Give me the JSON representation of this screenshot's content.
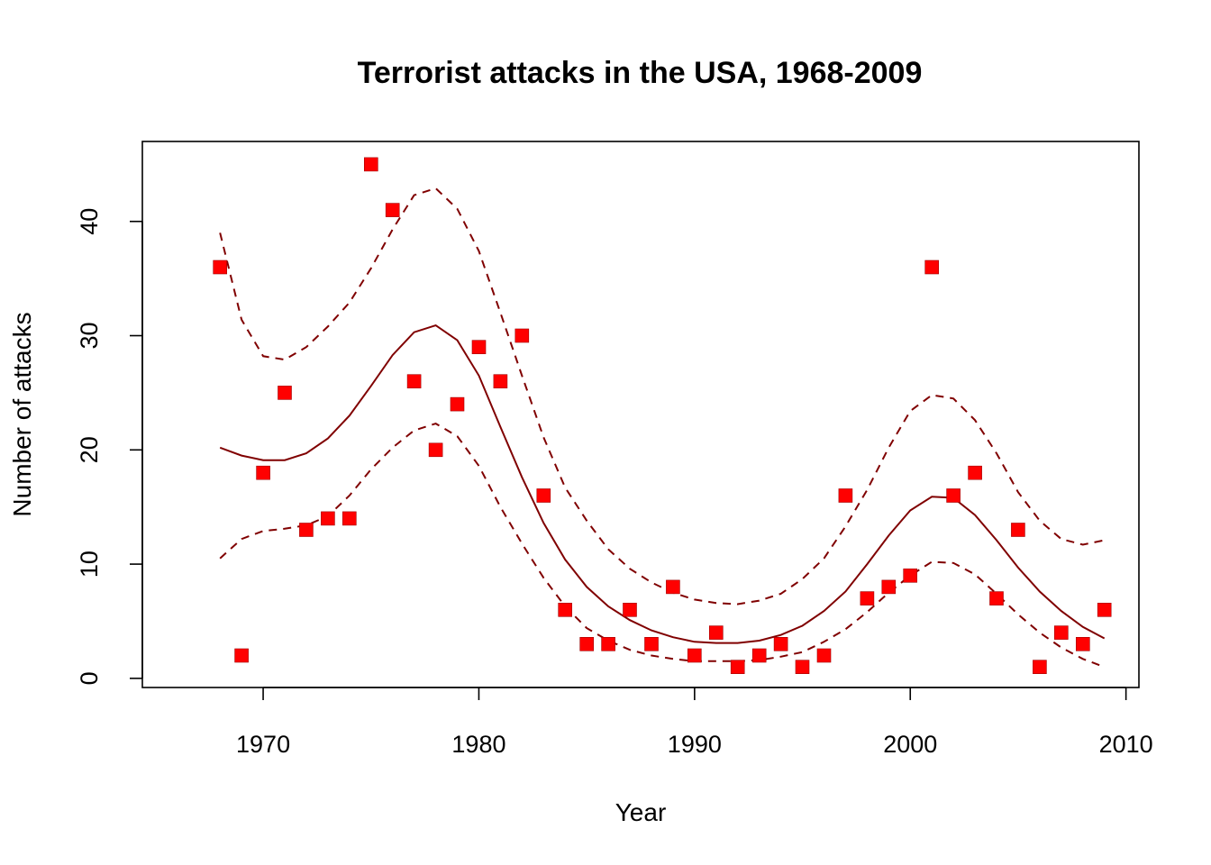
{
  "chart_data": {
    "type": "scatter",
    "title": "Terrorist attacks in the USA, 1968-2009",
    "xlabel": "Year",
    "ylabel": "Number of attacks",
    "xlim": [
      1964.4,
      2010.6
    ],
    "ylim": [
      -0.8,
      47
    ],
    "x_ticks": [
      1970,
      1980,
      1990,
      2000,
      2010
    ],
    "y_ticks": [
      0,
      10,
      20,
      30,
      40
    ],
    "grid": false,
    "legend": "none",
    "colors": {
      "points": "#ff0000",
      "fit": "#800000"
    },
    "points": {
      "x": [
        1968,
        1969,
        1970,
        1971,
        1972,
        1973,
        1974,
        1975,
        1976,
        1977,
        1978,
        1979,
        1980,
        1981,
        1982,
        1983,
        1984,
        1985,
        1986,
        1987,
        1988,
        1989,
        1990,
        1991,
        1992,
        1993,
        1994,
        1995,
        1996,
        1997,
        1998,
        1999,
        2000,
        2001,
        2002,
        2003,
        2004,
        2005,
        2006,
        2007,
        2008,
        2009
      ],
      "y": [
        36,
        2,
        18,
        25,
        13,
        14,
        14,
        45,
        41,
        26,
        20,
        24,
        29,
        26,
        30,
        16,
        6,
        3,
        3,
        6,
        3,
        8,
        2,
        4,
        1,
        2,
        3,
        1,
        2,
        16,
        7,
        8,
        9,
        36,
        16,
        18,
        7,
        13,
        1,
        4,
        3,
        6
      ]
    },
    "fit": {
      "x": [
        1968,
        1969,
        1970,
        1971,
        1972,
        1973,
        1974,
        1975,
        1976,
        1977,
        1978,
        1979,
        1980,
        1981,
        1982,
        1983,
        1984,
        1985,
        1986,
        1987,
        1988,
        1989,
        1990,
        1991,
        1992,
        1993,
        1994,
        1995,
        1996,
        1997,
        1998,
        1999,
        2000,
        2001,
        2002,
        2003,
        2004,
        2005,
        2006,
        2007,
        2008,
        2009
      ],
      "y": [
        20.2,
        19.5,
        19.1,
        19.1,
        19.7,
        21.0,
        23.0,
        25.6,
        28.3,
        30.3,
        30.9,
        29.6,
        26.5,
        22.0,
        17.6,
        13.6,
        10.4,
        8.0,
        6.3,
        5.1,
        4.2,
        3.6,
        3.2,
        3.1,
        3.1,
        3.3,
        3.8,
        4.6,
        5.9,
        7.6,
        10.0,
        12.5,
        14.7,
        15.9,
        15.8,
        14.3,
        12.1,
        9.7,
        7.6,
        5.9,
        4.5,
        3.5
      ]
    },
    "ci_upper": {
      "x": [
        1968,
        1969,
        1970,
        1971,
        1972,
        1973,
        1974,
        1975,
        1976,
        1977,
        1978,
        1979,
        1980,
        1981,
        1982,
        1983,
        1984,
        1985,
        1986,
        1987,
        1988,
        1989,
        1990,
        1991,
        1992,
        1993,
        1994,
        1995,
        1996,
        1997,
        1998,
        1999,
        2000,
        2001,
        2002,
        2003,
        2004,
        2005,
        2006,
        2007,
        2008,
        2009
      ],
      "y": [
        39.0,
        31.4,
        28.2,
        27.9,
        29.0,
        30.8,
        32.9,
        35.9,
        39.3,
        42.3,
        42.9,
        41.1,
        37.4,
        32.0,
        26.5,
        21.1,
        16.7,
        13.8,
        11.3,
        9.6,
        8.4,
        7.5,
        6.9,
        6.6,
        6.5,
        6.8,
        7.4,
        8.7,
        10.5,
        13.3,
        16.5,
        20.2,
        23.4,
        24.8,
        24.5,
        22.6,
        19.7,
        16.3,
        13.8,
        12.2,
        11.7,
        12.1
      ]
    },
    "ci_lower": {
      "x": [
        1968,
        1969,
        1970,
        1971,
        1972,
        1973,
        1974,
        1975,
        1976,
        1977,
        1978,
        1979,
        1980,
        1981,
        1982,
        1983,
        1984,
        1985,
        1986,
        1987,
        1988,
        1989,
        1990,
        1991,
        1992,
        1993,
        1994,
        1995,
        1996,
        1997,
        1998,
        1999,
        2000,
        2001,
        2002,
        2003,
        2004,
        2005,
        2006,
        2007,
        2008,
        2009
      ],
      "y": [
        10.5,
        12.2,
        12.9,
        13.1,
        13.4,
        14.2,
        16.0,
        18.3,
        20.2,
        21.7,
        22.3,
        21.2,
        18.6,
        15.0,
        11.8,
        8.8,
        6.3,
        4.4,
        3.3,
        2.5,
        2.0,
        1.7,
        1.5,
        1.5,
        1.5,
        1.6,
        1.9,
        2.3,
        3.2,
        4.3,
        5.8,
        7.5,
        9.0,
        10.2,
        10.1,
        9.1,
        7.4,
        5.6,
        4.0,
        2.7,
        1.7,
        1.0
      ]
    }
  }
}
